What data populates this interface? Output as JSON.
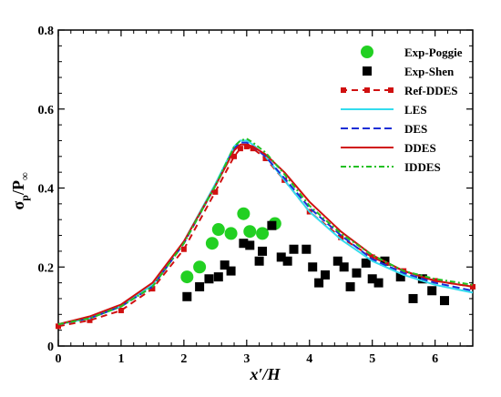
{
  "chart_data": {
    "type": "line",
    "xlabel": "x′/H",
    "ylabel_main": "σ",
    "ylabel_sub1": "p",
    "ylabel_mid": "/P",
    "ylabel_sub2": "∞",
    "xlim": [
      0,
      6.6
    ],
    "ylim": [
      0,
      0.8
    ],
    "xticks": [
      0,
      1,
      2,
      3,
      4,
      5,
      6
    ],
    "xtick_labels": [
      "0",
      "1",
      "2",
      "3",
      "4",
      "5",
      "6"
    ],
    "yticks": [
      0,
      0.2,
      0.4,
      0.6,
      0.8
    ],
    "ytick_labels": [
      "0",
      "0.2",
      "0.4",
      "0.6",
      "0.8"
    ],
    "legend_position": "top-right",
    "grid": false,
    "series": [
      {
        "name": "Exp-Poggie",
        "kind": "marker",
        "marker": "circle",
        "color": "#22d022",
        "x": [
          2.05,
          2.25,
          2.45,
          2.55,
          2.75,
          2.95,
          3.05,
          3.25,
          3.45
        ],
        "y": [
          0.175,
          0.2,
          0.26,
          0.295,
          0.285,
          0.335,
          0.29,
          0.285,
          0.31
        ]
      },
      {
        "name": "Exp-Shen",
        "kind": "marker",
        "marker": "square",
        "color": "#000000",
        "x": [
          2.05,
          2.25,
          2.4,
          2.55,
          2.65,
          2.75,
          2.95,
          3.05,
          3.2,
          3.25,
          3.4,
          3.55,
          3.65,
          3.75,
          3.95,
          4.05,
          4.15,
          4.25,
          4.45,
          4.55,
          4.65,
          4.75,
          4.9,
          5.0,
          5.1,
          5.2,
          5.45,
          5.65,
          5.8,
          5.95,
          6.15
        ],
        "y": [
          0.125,
          0.15,
          0.17,
          0.175,
          0.205,
          0.19,
          0.26,
          0.255,
          0.215,
          0.24,
          0.305,
          0.225,
          0.215,
          0.245,
          0.245,
          0.2,
          0.16,
          0.18,
          0.215,
          0.2,
          0.15,
          0.185,
          0.21,
          0.17,
          0.16,
          0.215,
          0.175,
          0.12,
          0.17,
          0.14,
          0.115
        ]
      },
      {
        "name": "Ref-DDES",
        "kind": "line",
        "color": "#d01010",
        "dash": "7,5",
        "marker": "square",
        "x": [
          0,
          0.5,
          1.0,
          1.5,
          2.0,
          2.5,
          2.8,
          2.9,
          3.0,
          3.1,
          3.3,
          3.6,
          4.0,
          4.5,
          5.0,
          5.5,
          6.0,
          6.6
        ],
        "y": [
          0.05,
          0.065,
          0.09,
          0.145,
          0.245,
          0.39,
          0.48,
          0.5,
          0.505,
          0.5,
          0.475,
          0.42,
          0.34,
          0.275,
          0.225,
          0.19,
          0.165,
          0.15
        ]
      },
      {
        "name": "LES",
        "kind": "line",
        "color": "#33dcee",
        "dash": "",
        "x": [
          0,
          0.5,
          1.0,
          1.5,
          2.0,
          2.5,
          2.8,
          2.9,
          3.0,
          3.1,
          3.3,
          3.6,
          4.0,
          4.5,
          5.0,
          5.5,
          6.0,
          6.6
        ],
        "y": [
          0.055,
          0.07,
          0.1,
          0.155,
          0.265,
          0.41,
          0.505,
          0.52,
          0.52,
          0.51,
          0.48,
          0.42,
          0.34,
          0.27,
          0.215,
          0.18,
          0.155,
          0.135
        ]
      },
      {
        "name": "DES",
        "kind": "line",
        "color": "#1c2ed6",
        "dash": "8,4",
        "x": [
          0,
          0.5,
          1.0,
          1.5,
          2.0,
          2.5,
          2.8,
          2.9,
          3.0,
          3.1,
          3.3,
          3.6,
          4.0,
          4.5,
          5.0,
          5.5,
          6.0,
          6.6
        ],
        "y": [
          0.055,
          0.07,
          0.1,
          0.15,
          0.26,
          0.405,
          0.5,
          0.515,
          0.515,
          0.505,
          0.48,
          0.425,
          0.35,
          0.28,
          0.22,
          0.185,
          0.16,
          0.14
        ]
      },
      {
        "name": "DDES",
        "kind": "line",
        "color": "#d01010",
        "dash": "",
        "x": [
          0,
          0.5,
          1.0,
          1.5,
          2.0,
          2.5,
          2.8,
          2.9,
          3.0,
          3.1,
          3.3,
          3.6,
          4.0,
          4.5,
          5.0,
          5.5,
          6.0,
          6.6
        ],
        "y": [
          0.055,
          0.075,
          0.105,
          0.16,
          0.265,
          0.405,
          0.495,
          0.51,
          0.51,
          0.505,
          0.485,
          0.44,
          0.365,
          0.29,
          0.23,
          0.19,
          0.165,
          0.15
        ]
      },
      {
        "name": "IDDES",
        "kind": "line",
        "color": "#22c022",
        "dash": "6,3,2,3",
        "x": [
          0,
          0.5,
          1.0,
          1.5,
          2.0,
          2.5,
          2.8,
          2.9,
          3.0,
          3.1,
          3.3,
          3.6,
          4.0,
          4.5,
          5.0,
          5.5,
          6.0,
          6.6
        ],
        "y": [
          0.055,
          0.07,
          0.1,
          0.15,
          0.26,
          0.405,
          0.505,
          0.52,
          0.525,
          0.515,
          0.49,
          0.435,
          0.355,
          0.285,
          0.23,
          0.19,
          0.17,
          0.155
        ]
      }
    ]
  }
}
